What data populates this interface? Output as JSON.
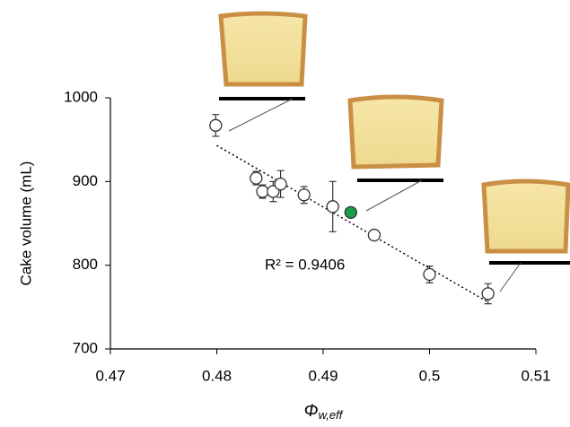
{
  "chart_data": {
    "type": "scatter",
    "x_label": {
      "main": "Φ",
      "sub": "w,eff"
    },
    "y_label": "Cake volume (mL)",
    "annotation": "R² = 0.9406",
    "xlim": [
      0.47,
      0.51
    ],
    "xticks": [
      0.47,
      0.48,
      0.49,
      0.5,
      0.51
    ],
    "ylim": [
      700,
      1000
    ],
    "yticks": [
      700,
      800,
      900,
      1000
    ],
    "series": [
      {
        "color": "#ffffff",
        "x": [
          0.4799,
          0.4837,
          0.4843,
          0.4853,
          0.486,
          0.4882,
          0.4909,
          0.4948,
          0.5,
          0.5055
        ],
        "values": [
          967,
          904,
          888,
          888,
          897,
          884,
          870,
          836,
          789,
          766
        ],
        "errors": [
          13,
          8,
          8,
          12,
          16,
          10,
          30,
          5,
          10,
          12
        ]
      },
      {
        "color": "#1a9e4b",
        "x": [
          0.4926
        ],
        "values": [
          863
        ]
      }
    ],
    "trendline": {
      "x": [
        0.48,
        0.5055
      ],
      "y": [
        943,
        756
      ]
    }
  }
}
